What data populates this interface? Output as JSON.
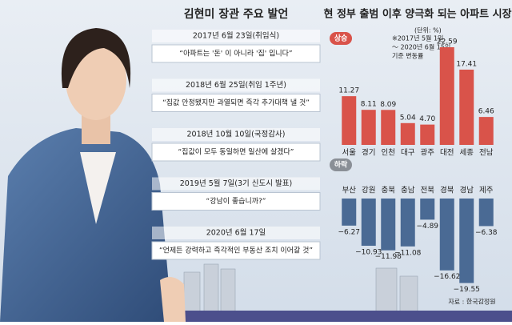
{
  "quotes_panel": {
    "title": "김현미 장관 주요 발언",
    "items": [
      {
        "date": "2017년 6월 23일(취임식)",
        "quote": "“아파트는 '돈' 이 아니라 '집' 입니다”"
      },
      {
        "date": "2018년 6월 25일(취임 1주년)",
        "quote": "“집값 안정됐지만 과열되면 즉각 추가대책 낼 것”"
      },
      {
        "date": "2018년 10월 10일(국정감사)",
        "quote": "“집값이 모두 동일하면 일산에 살겠다”"
      },
      {
        "date": "2019년 5월 7일(3기 신도시 발표)",
        "quote": "“강남이 좋습니까?”"
      },
      {
        "date": "2020년 6월 17일",
        "quote": "“언제든 강력하고 즉각적인 부동산 조치 이어갈 것”"
      }
    ]
  },
  "chart_data": [
    {
      "type": "bar",
      "title": "현 정부 출범 이후 양극화 되는 아파트 시장",
      "unit": "(단위: %)",
      "note": [
        "※2017년 5월 1일",
        "～ 2020년 6월 15일",
        "기준 변동률"
      ],
      "label": "상승",
      "categories": [
        "서울",
        "경기",
        "인천",
        "대구",
        "광주",
        "대전",
        "세종",
        "전남"
      ],
      "values": [
        11.27,
        8.11,
        8.09,
        5.04,
        4.7,
        22.59,
        17.41,
        6.46
      ],
      "value_labels": [
        "11.27",
        "8.11",
        "8.09",
        "5.04",
        "4.70",
        "22.59",
        "17.41",
        "6.46"
      ],
      "color": "#d9534a"
    },
    {
      "type": "bar",
      "label": "하락",
      "categories": [
        "부산",
        "강원",
        "충북",
        "충남",
        "전북",
        "경북",
        "경남",
        "제주"
      ],
      "values": [
        -6.27,
        -10.93,
        -11.98,
        -11.08,
        -4.89,
        -16.62,
        -19.55,
        -6.38
      ],
      "value_labels": [
        "−6.27",
        "−10.93",
        "−11.98",
        "−11.08",
        "−4.89",
        "−16.62",
        "−19.55",
        "−6.38"
      ],
      "color": "#4a6a94",
      "source": "자료 : 한국감정원"
    }
  ]
}
